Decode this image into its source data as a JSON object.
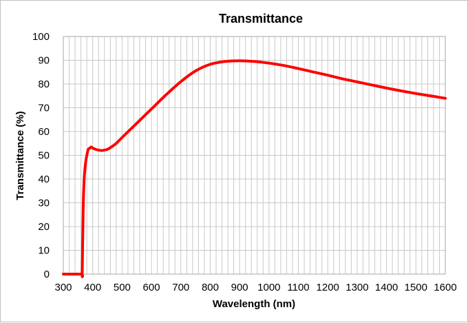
{
  "chart_data": {
    "type": "line",
    "title": "Transmittance",
    "xlabel": "Wavelength (nm)",
    "ylabel": "Transmittance (%)",
    "xlim": [
      300,
      1600
    ],
    "ylim": [
      0,
      100
    ],
    "x_ticks": [
      "300",
      "400",
      "500",
      "600",
      "700",
      "800",
      "900",
      "1000",
      "1100",
      "1200",
      "1300",
      "1400",
      "1500",
      "1600"
    ],
    "y_ticks": [
      "0",
      "10",
      "20",
      "30",
      "40",
      "50",
      "60",
      "70",
      "80",
      "90",
      "100"
    ],
    "grid": true,
    "minor_x_grid_step": 20,
    "series": [
      {
        "color": "#ff0000",
        "x": [
          300,
          360,
          364,
          366,
          368,
          370,
          372,
          376,
          380,
          385,
          390,
          395,
          400,
          405,
          410,
          420,
          430,
          440,
          450,
          460,
          480,
          500,
          550,
          600,
          650,
          700,
          750,
          800,
          850,
          900,
          950,
          1000,
          1050,
          1100,
          1150,
          1200,
          1250,
          1300,
          1350,
          1400,
          1450,
          1500,
          1550,
          1600
        ],
        "y": [
          0,
          0,
          0,
          15,
          30,
          37,
          42,
          47,
          50,
          52.5,
          53,
          53.5,
          53,
          52.8,
          52.5,
          52.2,
          52.0,
          52.2,
          52.5,
          53.2,
          55,
          57.5,
          63.5,
          69.5,
          75.5,
          81,
          85.5,
          88.3,
          89.5,
          89.8,
          89.5,
          88.8,
          87.8,
          86.5,
          85.1,
          83.7,
          82.2,
          80.9,
          79.6,
          78.3,
          77.1,
          76.0,
          75.0,
          74.0
        ]
      }
    ]
  }
}
